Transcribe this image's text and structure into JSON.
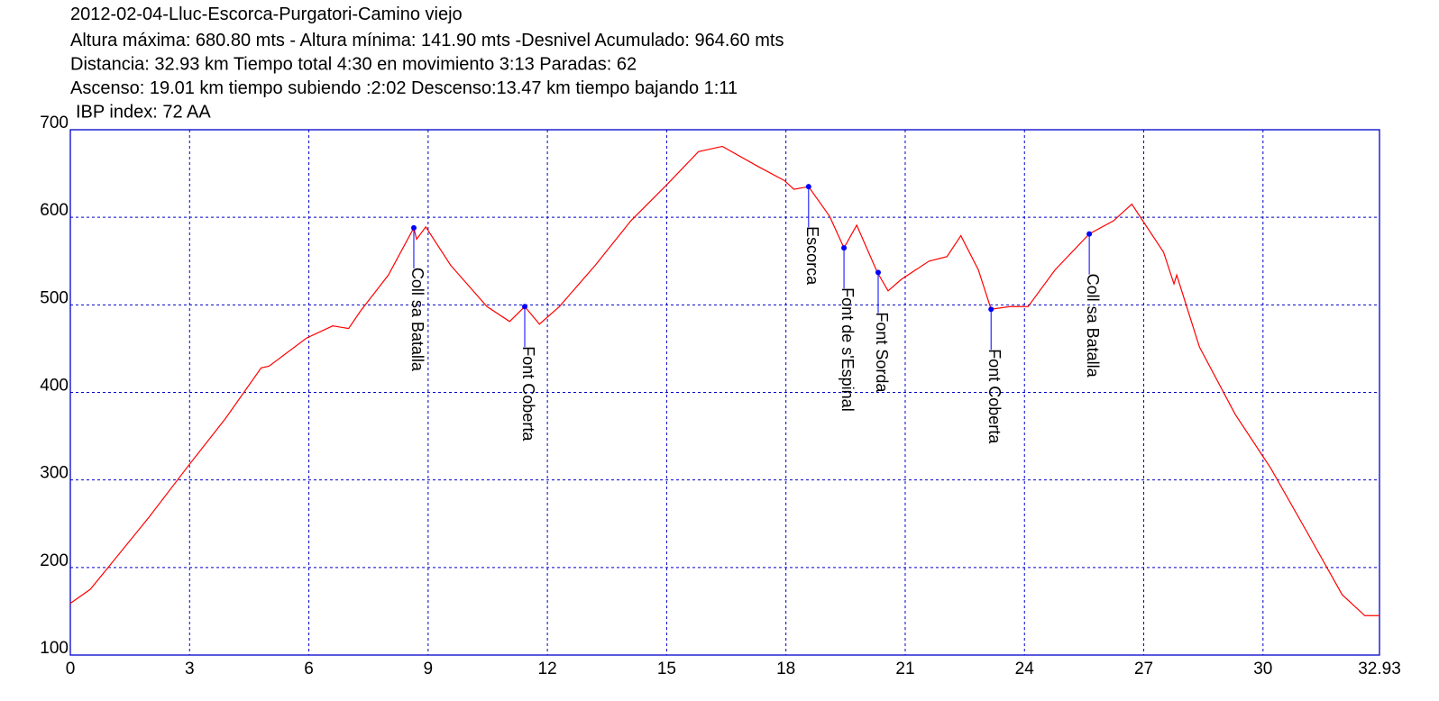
{
  "chart_data": {
    "type": "line",
    "title": "2012-02-04-Lluc-Escorca-Purgatori-Camino viejo",
    "subtitle": [
      "Altura máxima: 680.80 mts - Altura mínima: 141.90 mts -Desnivel Acumulado: 964.60 mts",
      "Distancia: 32.93 km  Tiempo total 4:30  en movimiento 3:13 Paradas: 62",
      "Ascenso: 19.01 km  tiempo subiendo :2:02  Descenso:13.47 km tiempo bajando 1:11",
      "IBP index: 72 AA"
    ],
    "xlim": [
      0,
      32.93
    ],
    "ylim": [
      100,
      700
    ],
    "xticks": [
      0,
      3,
      6,
      9,
      12,
      15,
      18,
      21,
      24,
      27,
      30,
      32.93
    ],
    "yticks": [
      100,
      200,
      300,
      400,
      500,
      600,
      700
    ],
    "grid": true,
    "grid_color": "#0000cc",
    "frame_color": "#0000cc",
    "series": [
      {
        "color": "#ff0000",
        "x": [
          0,
          0.5,
          0.95,
          1.97,
          3,
          3.9,
          4.8,
          5.0,
          5.94,
          6.6,
          7.0,
          7.3,
          8.0,
          8.64,
          8.71,
          8.94,
          9.57,
          10.48,
          11.05,
          11.43,
          11.8,
          12.3,
          13.2,
          14.1,
          15.0,
          15.8,
          16.4,
          17.3,
          17.96,
          18.2,
          18.57,
          19.1,
          19.46,
          19.78,
          20.3,
          20.57,
          20.9,
          21.6,
          22.05,
          22.4,
          22.84,
          23.16,
          23.63,
          24.09,
          24.77,
          25.63,
          26.24,
          26.7,
          27.5,
          27.76,
          27.83,
          28.4,
          29.3,
          30.2,
          31.1,
          31.99,
          32.56,
          32.93
        ],
        "values": [
          159,
          175,
          200,
          257,
          318,
          370,
          428,
          430,
          462,
          476,
          473,
          493,
          534,
          588,
          575,
          589,
          545,
          498,
          481,
          498,
          478,
          498,
          545,
          596,
          637,
          675,
          681,
          658,
          642,
          632,
          635,
          601,
          565,
          591,
          537,
          516,
          529,
          550,
          555,
          579,
          540,
          495,
          498,
          498,
          540,
          581,
          596,
          615,
          560,
          524,
          534,
          452,
          375,
          313,
          241,
          169,
          145,
          145
        ]
      }
    ],
    "annotations": [
      {
        "label": "Coll sa Batalla",
        "x": 8.64,
        "y": 588
      },
      {
        "label": "Font Coberta",
        "x": 11.43,
        "y": 498
      },
      {
        "label": "Escorca",
        "x": 18.57,
        "y": 635
      },
      {
        "label": "Font de s'Espinal",
        "x": 19.46,
        "y": 565
      },
      {
        "label": "Font Sorda",
        "x": 20.32,
        "y": 537
      },
      {
        "label": "Font Coberta",
        "x": 23.16,
        "y": 495
      },
      {
        "label": "Coll sa Batalla",
        "x": 25.63,
        "y": 581
      }
    ],
    "annotation_color": "#0000ff"
  }
}
